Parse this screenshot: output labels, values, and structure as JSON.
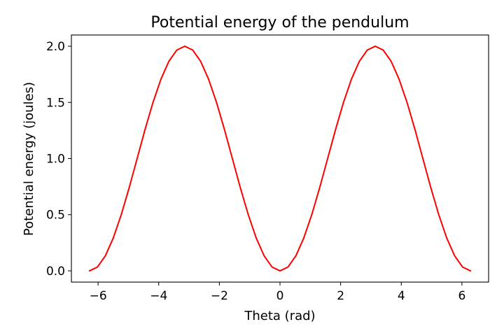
{
  "chart_data": {
    "type": "line",
    "title": "Potential energy of the pendulum",
    "xlabel": "Theta (rad)",
    "ylabel": "Potential energy (joules)",
    "xlim": [
      -6.88,
      6.88
    ],
    "ylim": [
      -0.1,
      2.1
    ],
    "xticks": [
      -6,
      -4,
      -2,
      0,
      2,
      4,
      6
    ],
    "xtick_labels": [
      "−6",
      "−4",
      "−2",
      "0",
      "2",
      "4",
      "6"
    ],
    "yticks": [
      0.0,
      0.5,
      1.0,
      1.5,
      2.0
    ],
    "ytick_labels": [
      "0.0",
      "0.5",
      "1.0",
      "1.5",
      "2.0"
    ],
    "grid": false,
    "series": [
      {
        "color": "#ff0000",
        "x": [
          -6.283,
          -6.021,
          -5.76,
          -5.498,
          -5.236,
          -4.974,
          -4.712,
          -4.451,
          -4.189,
          -3.927,
          -3.665,
          -3.403,
          -3.142,
          -2.88,
          -2.618,
          -2.356,
          -2.094,
          -1.833,
          -1.571,
          -1.309,
          -1.047,
          -0.785,
          -0.524,
          -0.262,
          0.0,
          0.262,
          0.524,
          0.785,
          1.047,
          1.309,
          1.571,
          1.833,
          2.094,
          2.356,
          2.618,
          2.88,
          3.142,
          3.403,
          3.665,
          3.927,
          4.189,
          4.451,
          4.712,
          4.974,
          5.236,
          5.498,
          5.76,
          6.021,
          6.283
        ],
        "y": [
          0.0,
          0.034,
          0.134,
          0.293,
          0.5,
          0.741,
          1.0,
          1.259,
          1.5,
          1.707,
          1.866,
          1.966,
          2.0,
          1.966,
          1.866,
          1.707,
          1.5,
          1.259,
          1.0,
          0.741,
          0.5,
          0.293,
          0.134,
          0.034,
          0.0,
          0.034,
          0.134,
          0.293,
          0.5,
          0.741,
          1.0,
          1.259,
          1.5,
          1.707,
          1.866,
          1.966,
          2.0,
          1.966,
          1.866,
          1.707,
          1.5,
          1.259,
          1.0,
          0.741,
          0.5,
          0.293,
          0.134,
          0.034,
          0.0
        ]
      }
    ]
  }
}
